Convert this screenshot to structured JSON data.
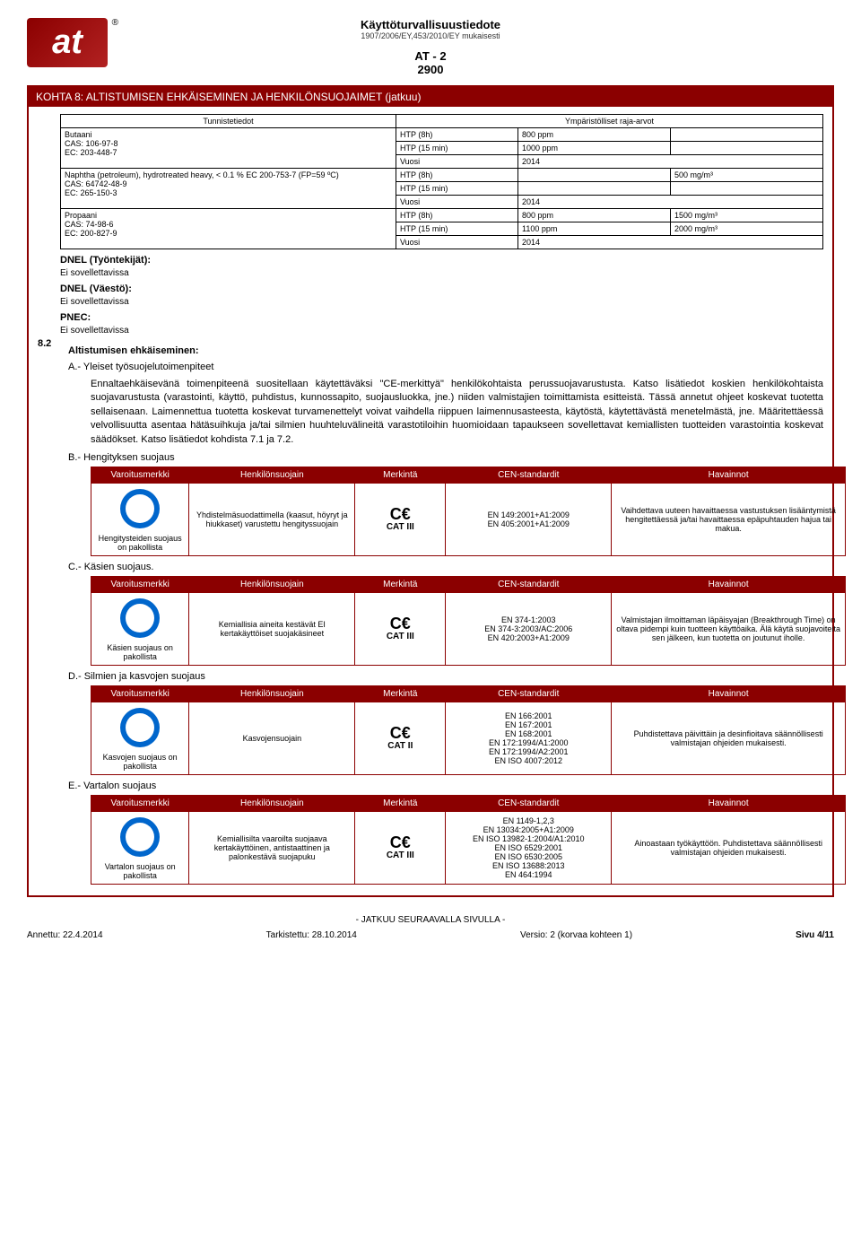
{
  "header": {
    "doc": "Käyttöturvallisuustiedote",
    "reg": "1907/2006/EY,453/2010/EY mukaisesti",
    "at": "AT - 2",
    "num": "2900"
  },
  "section": {
    "title": "KOHTA 8: ALTISTUMISEN EHKÄISEMINEN JA HENKILÖNSUOJAIMET (jatkuu)"
  },
  "exp": {
    "hl": "Tunnistetiedot",
    "hr": "Ympäristölliset raja-arvot",
    "rows": [
      {
        "n": "Butaani",
        "c": "CAS: 106-97-8",
        "e": "EC: 203-448-7",
        "a": "HTP (8h)",
        "v1": "800 ppm",
        "v2": "",
        "b": "HTP (15 min)",
        "w1": "1000 ppm",
        "w2": "",
        "y": "Vuosi",
        "yr": "2014"
      },
      {
        "n": "Naphtha (petroleum), hydrotreated heavy, < 0.1 % EC 200-753-7 (FP=59 ºC)",
        "c": "CAS: 64742-48-9",
        "e": "EC: 265-150-3",
        "a": "HTP (8h)",
        "v1": "",
        "v2": "500 mg/m³",
        "b": "HTP (15 min)",
        "w1": "",
        "w2": "",
        "y": "Vuosi",
        "yr": "2014"
      },
      {
        "n": "Propaani",
        "c": "CAS: 74-98-6",
        "e": "EC: 200-827-9",
        "a": "HTP (8h)",
        "v1": "800 ppm",
        "v2": "1500 mg/m³",
        "b": "HTP (15 min)",
        "w1": "1100 ppm",
        "w2": "2000 mg/m³",
        "y": "Vuosi",
        "yr": "2014"
      }
    ]
  },
  "dnel": {
    "w": "DNEL (Työntekijät):",
    "p": "DNEL (Väestö):",
    "pn": "PNEC:",
    "na": "Ei sovellettavissa"
  },
  "s82": {
    "num": "8.2",
    "t": "Altistumisen ehkäiseminen:",
    "a": "A.- Yleiset työsuojelutoimenpiteet",
    "p": "Ennaltaehkäisevänä toimenpiteenä suositellaan käytettäväksi \"CE-merkittyä\" henkilökohtaista perussuojavarustusta. Katso lisätiedot koskien henkilökohtaista suojavarustusta (varastointi, käyttö, puhdistus, kunnossapito, suojausluokka, jne.) niiden valmistajien toimittamista esitteistä. Tässä annetut ohjeet koskevat tuotetta sellaisenaan. Laimennettua tuotetta koskevat turvamenettelyt voivat vaihdella riippuen laimennusasteesta, käytöstä, käytettävästä menetelmästä, jne. Määritettäessä velvollisuutta asentaa hätäsuihkuja ja/tai silmien huuhteluvälineitä varastotiloihin huomioidaan tapaukseen sovellettavat kemiallisten tuotteiden varastointia koskevat säädökset. Katso lisätiedot kohdista 7.1 ja 7.2."
  },
  "ppeH": [
    "Varoitusmerkki",
    "Henkilönsuojain",
    "Merkintä",
    "CEN-standardit",
    "Havainnot"
  ],
  "b": {
    "t": "B.- Hengityksen suojaus",
    "cap": "Hengitysteiden suojaus on pakollista",
    "d": "Yhdistelmäsuodattimella (kaasut, höyryt ja hiukkaset) varustettu hengityssuojain",
    "cat": "CAT III",
    "std": "EN 149:2001+A1:2009\nEN 405:2001+A1:2009",
    "obs": "Vaihdettava uuteen havaittaessa vastustuksen lisääntymistä hengitettäessä ja/tai havaittaessa epäpuhtauden hajua tai makua."
  },
  "c": {
    "t": "C.- Käsien suojaus.",
    "cap": "Käsien suojaus on pakollista",
    "d": "Kemiallisia aineita kestävät EI kertakäyttöiset suojakäsineet",
    "cat": "CAT III",
    "std": "EN 374-1:2003\nEN 374-3:2003/AC:2006\nEN 420:2003+A1:2009",
    "obs": "Valmistajan ilmoittaman läpäisyajan (Breakthrough Time) on oltava pidempi kuin tuotteen käyttöaika. Älä käytä suojavoiteita sen jälkeen, kun tuotetta on joutunut iholle."
  },
  "d": {
    "t": "D.- Silmien ja kasvojen suojaus",
    "cap": "Kasvojen suojaus on pakollista",
    "d": "Kasvojensuojain",
    "cat": "CAT II",
    "std": "EN 166:2001\nEN 167:2001\nEN 168:2001\nEN 172:1994/A1:2000\nEN 172:1994/A2:2001\nEN ISO 4007:2012",
    "obs": "Puhdistettava päivittäin ja desinfioitava säännöllisesti valmistajan ohjeiden mukaisesti."
  },
  "e": {
    "t": "E.- Vartalon suojaus",
    "cap": "Vartalon suojaus on pakollista",
    "d": "Kemiallisilta vaaroilta suojaava kertakäyttöinen, antistaattinen ja palonkestävä suojapuku",
    "cat": "CAT III",
    "std": "EN 1149-1,2,3\nEN 13034:2005+A1:2009\nEN ISO 13982-1:2004/A1:2010\nEN ISO 6529:2001\nEN ISO 6530:2005\nEN ISO 13688:2013\nEN 464:1994",
    "obs": "Ainoastaan työkäyttöön. Puhdistettava säännöllisesti valmistajan ohjeiden mukaisesti."
  },
  "footer": {
    "cont": "- JATKUU SEURAAVALLA SIVULLA -",
    "d": "Annettu: 22.4.2014",
    "r": "Tarkistettu: 28.10.2014",
    "v": "Versio: 2 (korvaa kohteen 1)",
    "p": "Sivu 4/11"
  }
}
